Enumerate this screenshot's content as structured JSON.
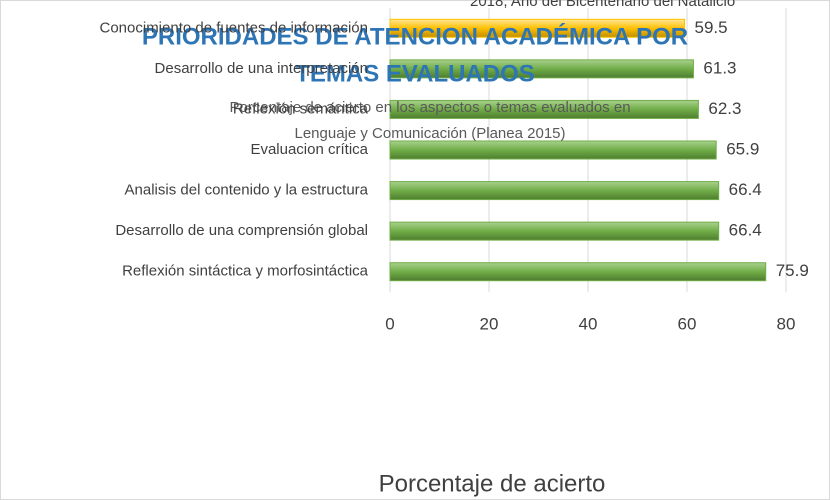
{
  "header": "2018, Año del Bicentenario del Natalicio",
  "chart_data": {
    "type": "hbar",
    "title": "PRIORIDADES DE ATENCION ACADÉMICA POR TEMAS EVALUADOS",
    "subtitle": "Porcentaje de acierto en los aspectos o temas evaluados en Lenguaje y Comunicación (Planea 2015)",
    "x_label": "Porcentaje de acierto",
    "categories": [
      "Conocimiento de fuentes de información",
      "Desarrollo de una interpretación",
      "Reflexión semántica",
      "Evaluacion crítica",
      "Analisis del contenido y la estructura",
      "Desarrollo de una comprensión global",
      "Reflexión sintáctica y morfosintáctica"
    ],
    "values": [
      59.5,
      61.3,
      62.3,
      65.9,
      66.4,
      66.4,
      75.9
    ],
    "colors": [
      "#ffc000",
      "#70ad47",
      "#70ad47",
      "#70ad47",
      "#70ad47",
      "#70ad47",
      "#70ad47"
    ],
    "xlim": [
      0,
      80
    ],
    "xticks": [
      0,
      20,
      40,
      60,
      80
    ],
    "grid": true
  }
}
